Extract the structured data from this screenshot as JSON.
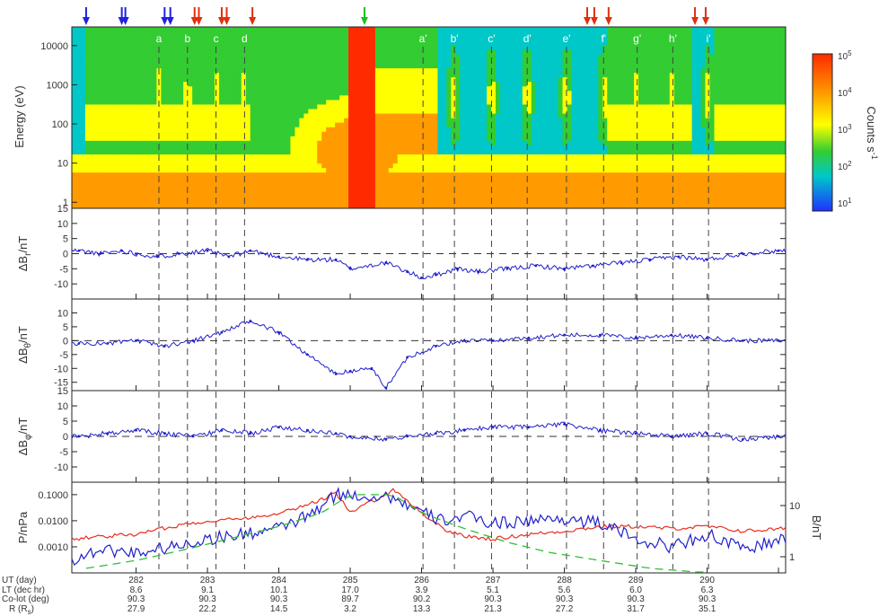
{
  "chart_data": [
    {
      "type": "heatmap",
      "ylabel": "Energy (eV)",
      "yscale": "log",
      "ylim": [
        0.7,
        30000
      ],
      "yticks": [
        "1",
        "10",
        "100",
        "1000",
        "10000"
      ],
      "xlim": [
        281.1,
        291.1
      ],
      "colorbar": {
        "label": "Counts s",
        "label_sup": "-1",
        "ticks": [
          {
            "base": "10",
            "exp": "5"
          },
          {
            "base": "10",
            "exp": "4"
          },
          {
            "base": "10",
            "exp": "3"
          },
          {
            "base": "10",
            "exp": "2"
          },
          {
            "base": "10",
            "exp": "1"
          }
        ],
        "colors": [
          "#ff2a00",
          "#ff9a00",
          "#ffff00",
          "#33cc33",
          "#00c8c8",
          "#2030ff"
        ]
      },
      "event_labels": [
        "a",
        "b",
        "c",
        "d",
        "a'",
        "b'",
        "c'",
        "d'",
        "e'",
        "f'",
        "g'",
        "h'",
        "i'"
      ],
      "event_times": [
        282.32,
        282.72,
        283.12,
        283.52,
        286.02,
        286.46,
        286.98,
        287.48,
        288.03,
        288.55,
        289.02,
        289.52,
        290.02
      ],
      "markers": [
        {
          "time": 281.3,
          "color": "#2020e0"
        },
        {
          "time": 281.8,
          "color": "#2020e0"
        },
        {
          "time": 281.85,
          "color": "#2020e0"
        },
        {
          "time": 282.4,
          "color": "#2020e0"
        },
        {
          "time": 282.48,
          "color": "#2020e0"
        },
        {
          "time": 282.82,
          "color": "#e03010"
        },
        {
          "time": 282.88,
          "color": "#e03010"
        },
        {
          "time": 283.2,
          "color": "#e03010"
        },
        {
          "time": 283.27,
          "color": "#e03010"
        },
        {
          "time": 283.63,
          "color": "#e03010"
        },
        {
          "time": 285.2,
          "color": "#20c020"
        },
        {
          "time": 288.32,
          "color": "#e03010"
        },
        {
          "time": 288.42,
          "color": "#e03010"
        },
        {
          "time": 288.62,
          "color": "#e03010"
        },
        {
          "time": 289.83,
          "color": "#e03010"
        },
        {
          "time": 289.98,
          "color": "#e03010"
        }
      ]
    },
    {
      "type": "scatter",
      "ylabel_pre": "ΔB",
      "ylabel_sub": "r",
      "ylabel_post": "/nT",
      "ylim": [
        -15,
        15
      ],
      "yticks": [
        "15",
        "10",
        "5",
        "0",
        "-5",
        "-10"
      ],
      "color": "#2020cc",
      "x": [
        281.2,
        281.5,
        281.8,
        282.0,
        282.3,
        282.6,
        283.0,
        283.3,
        283.6,
        284.0,
        284.4,
        284.8,
        285.0,
        285.5,
        285.8,
        286.0,
        286.2,
        286.5,
        286.8,
        287.2,
        287.6,
        288.0,
        288.4,
        288.8,
        289.2,
        289.6,
        290.0,
        290.5,
        291.0
      ],
      "y": [
        1,
        0,
        1,
        0,
        -1,
        0,
        1,
        -1,
        1,
        -1,
        -2,
        -2,
        -5,
        -3,
        -6,
        -8,
        -7,
        -5,
        -6,
        -5,
        -4,
        -5,
        -4,
        -3,
        -2,
        -1,
        -2,
        0,
        1
      ]
    },
    {
      "type": "scatter",
      "ylabel_pre": "ΔB",
      "ylabel_sub": "θ",
      "ylabel_post": "/nT",
      "ylim": [
        -18,
        15
      ],
      "yticks": [
        "10",
        "5",
        "0",
        "-5",
        "-10",
        "-15"
      ],
      "color": "#2020cc",
      "x": [
        281.2,
        281.6,
        282.0,
        282.4,
        282.8,
        283.2,
        283.6,
        284.0,
        284.4,
        284.8,
        285.0,
        285.3,
        285.5,
        285.8,
        286.2,
        286.6,
        287.0,
        287.5,
        288.0,
        288.5,
        289.0,
        289.5,
        290.0,
        290.5,
        291.0
      ],
      "y": [
        -1,
        -1,
        0,
        -2,
        0,
        3,
        7,
        3,
        -5,
        -12,
        -11,
        -10,
        -17,
        -6,
        -2,
        0,
        0,
        1,
        2,
        2,
        1,
        2,
        1,
        0,
        0
      ]
    },
    {
      "type": "scatter",
      "ylabel_pre": "ΔB",
      "ylabel_sub": "φ",
      "ylabel_post": "/nT",
      "ylim": [
        -15,
        15
      ],
      "yticks": [
        "15",
        "10",
        "5",
        "0",
        "-5",
        "-10"
      ],
      "color": "#2020cc",
      "x": [
        281.2,
        281.6,
        282.0,
        282.4,
        282.8,
        283.2,
        283.6,
        284.0,
        284.4,
        284.8,
        285.0,
        285.5,
        285.8,
        286.2,
        286.6,
        287.0,
        287.5,
        288.0,
        288.5,
        289.0,
        289.5,
        290.0,
        290.5,
        291.0
      ],
      "y": [
        0,
        1,
        2,
        1,
        0,
        2,
        1,
        3,
        2,
        1,
        0,
        -1,
        0,
        1,
        2,
        3,
        3,
        4,
        2,
        1,
        0,
        1,
        -1,
        0
      ]
    },
    {
      "type": "line",
      "ylabel": "P/nPa",
      "yscale": "log",
      "ylim": [
        0.0001,
        0.3
      ],
      "yticks": [
        "0.1000",
        "0.0100",
        "0.0010"
      ],
      "y2label": "B/nT",
      "y2ticks": [
        "10",
        "1"
      ],
      "series": [
        {
          "color": "#e83020",
          "x": [
            281.1,
            281.5,
            282.0,
            282.5,
            283.0,
            283.5,
            284.0,
            284.5,
            284.8,
            285.0,
            285.6,
            285.8,
            286.0,
            286.3,
            286.6,
            287.0,
            287.5,
            288.0,
            288.5,
            289.0,
            289.5,
            290.0,
            290.5,
            291.1
          ],
          "y": [
            0.002,
            0.0025,
            0.003,
            0.006,
            0.01,
            0.012,
            0.02,
            0.05,
            0.12,
            0.02,
            0.15,
            0.06,
            0.02,
            0.005,
            0.0025,
            0.002,
            0.003,
            0.004,
            0.006,
            0.006,
            0.005,
            0.006,
            0.004,
            0.005
          ]
        },
        {
          "color": "#2020cc",
          "x": [
            281.1,
            281.5,
            282.0,
            282.5,
            283.0,
            283.5,
            284.0,
            284.5,
            284.8,
            285.6,
            286.0,
            286.3,
            286.6,
            287.0,
            287.5,
            288.0,
            288.5,
            289.0,
            289.5,
            290.0,
            290.5,
            291.1
          ],
          "y": [
            0.0003,
            0.0008,
            0.0006,
            0.001,
            0.002,
            0.003,
            0.005,
            0.02,
            0.1,
            0.08,
            0.02,
            0.01,
            0.015,
            0.008,
            0.01,
            0.012,
            0.008,
            0.002,
            0.001,
            0.003,
            0.0008,
            0.002
          ]
        },
        {
          "color": "#30c030",
          "dash": true,
          "x": [
            281.3,
            282.0,
            282.7,
            283.3,
            284.0,
            284.6,
            285.0,
            285.6,
            286.0,
            286.6,
            287.2,
            287.8,
            288.5,
            289.2,
            290.0
          ],
          "y": [
            0.00015,
            0.0003,
            0.0008,
            0.002,
            0.006,
            0.02,
            0.1,
            0.1,
            0.02,
            0.005,
            0.0015,
            0.0006,
            0.0003,
            0.00015,
            0.0001
          ]
        }
      ]
    }
  ],
  "ephemeris": {
    "row_labels": [
      "UT (day)",
      "LT (dec hr)",
      "Co-lot (deg)"
    ],
    "r_label": "R (R",
    "r_label_sub": "s",
    "r_label_end": ")",
    "columns": [
      {
        "day": "282",
        "lt": "8.6",
        "colat": "90.3",
        "r": "27.9"
      },
      {
        "day": "283",
        "lt": "9.1",
        "colat": "90.3",
        "r": "22.2"
      },
      {
        "day": "284",
        "lt": "10.1",
        "colat": "90.3",
        "r": "14.5"
      },
      {
        "day": "285",
        "lt": "17.0",
        "colat": "89.7",
        "r": "3.2"
      },
      {
        "day": "286",
        "lt": "3.9",
        "colat": "90.2",
        "r": "13.3"
      },
      {
        "day": "287",
        "lt": "5.1",
        "colat": "90.3",
        "r": "21.3"
      },
      {
        "day": "288",
        "lt": "5.6",
        "colat": "90.3",
        "r": "27.2"
      },
      {
        "day": "289",
        "lt": "6.0",
        "colat": "90.3",
        "r": "31.7"
      },
      {
        "day": "290",
        "lt": "6.3",
        "colat": "90.3",
        "r": "35.1"
      }
    ]
  }
}
